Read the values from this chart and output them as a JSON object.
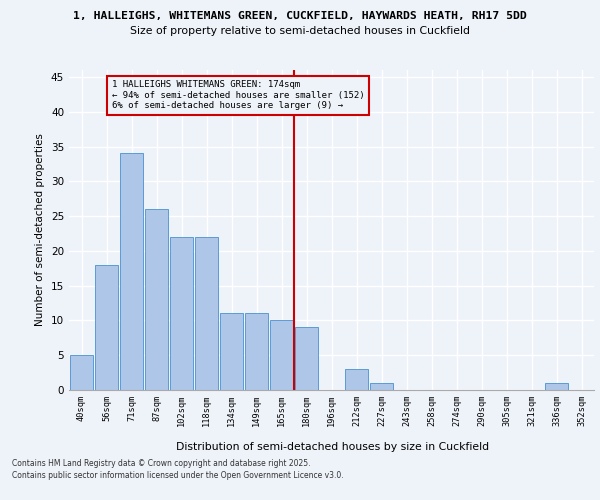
{
  "title_line1": "1, HALLEIGHS, WHITEMANS GREEN, CUCKFIELD, HAYWARDS HEATH, RH17 5DD",
  "title_line2": "Size of property relative to semi-detached houses in Cuckfield",
  "xlabel": "Distribution of semi-detached houses by size in Cuckfield",
  "ylabel": "Number of semi-detached properties",
  "bar_labels": [
    "40sqm",
    "56sqm",
    "71sqm",
    "87sqm",
    "102sqm",
    "118sqm",
    "134sqm",
    "149sqm",
    "165sqm",
    "180sqm",
    "196sqm",
    "212sqm",
    "227sqm",
    "243sqm",
    "258sqm",
    "274sqm",
    "290sqm",
    "305sqm",
    "321sqm",
    "336sqm",
    "352sqm"
  ],
  "bar_values": [
    5,
    18,
    34,
    26,
    22,
    22,
    11,
    11,
    10,
    9,
    0,
    3,
    1,
    0,
    0,
    0,
    0,
    0,
    0,
    1,
    0
  ],
  "bar_color": "#aec6e8",
  "bar_edgecolor": "#5b9bd5",
  "annotation_text_line1": "1 HALLEIGHS WHITEMANS GREEN: 174sqm",
  "annotation_text_line2": "← 94% of semi-detached houses are smaller (152)",
  "annotation_text_line3": "6% of semi-detached houses are larger (9) →",
  "annotation_box_color": "#cc0000",
  "vline_color": "#cc0000",
  "ylim": [
    0,
    46
  ],
  "yticks": [
    0,
    5,
    10,
    15,
    20,
    25,
    30,
    35,
    40,
    45
  ],
  "background_color": "#eef2f9",
  "grid_color": "#ffffff",
  "footer_line1": "Contains HM Land Registry data © Crown copyright and database right 2025.",
  "footer_line2": "Contains public sector information licensed under the Open Government Licence v3.0."
}
